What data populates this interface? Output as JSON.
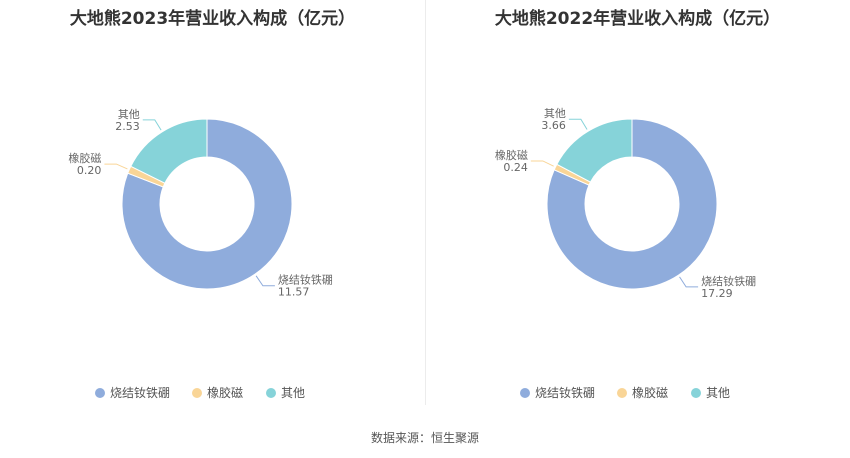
{
  "source": "数据来源：恒生聚源",
  "colors": {
    "烧结钕铁硼": "#8FACDC",
    "橡胶磁": "#F9D597",
    "其他": "#86D3D9"
  },
  "chart_data": [
    {
      "type": "pie",
      "title": "大地熊2023年营业收入构成（亿元）",
      "categories": [
        "烧结钕铁硼",
        "橡胶磁",
        "其他"
      ],
      "values": [
        11.57,
        0.2,
        2.53
      ],
      "value_labels": [
        "11.57",
        "0.20",
        "2.53"
      ],
      "legend": "bottom"
    },
    {
      "type": "pie",
      "title": "大地熊2022年营业收入构成（亿元）",
      "categories": [
        "烧结钕铁硼",
        "橡胶磁",
        "其他"
      ],
      "values": [
        17.29,
        0.24,
        3.66
      ],
      "value_labels": [
        "17.29",
        "0.24",
        "3.66"
      ],
      "legend": "bottom"
    }
  ]
}
